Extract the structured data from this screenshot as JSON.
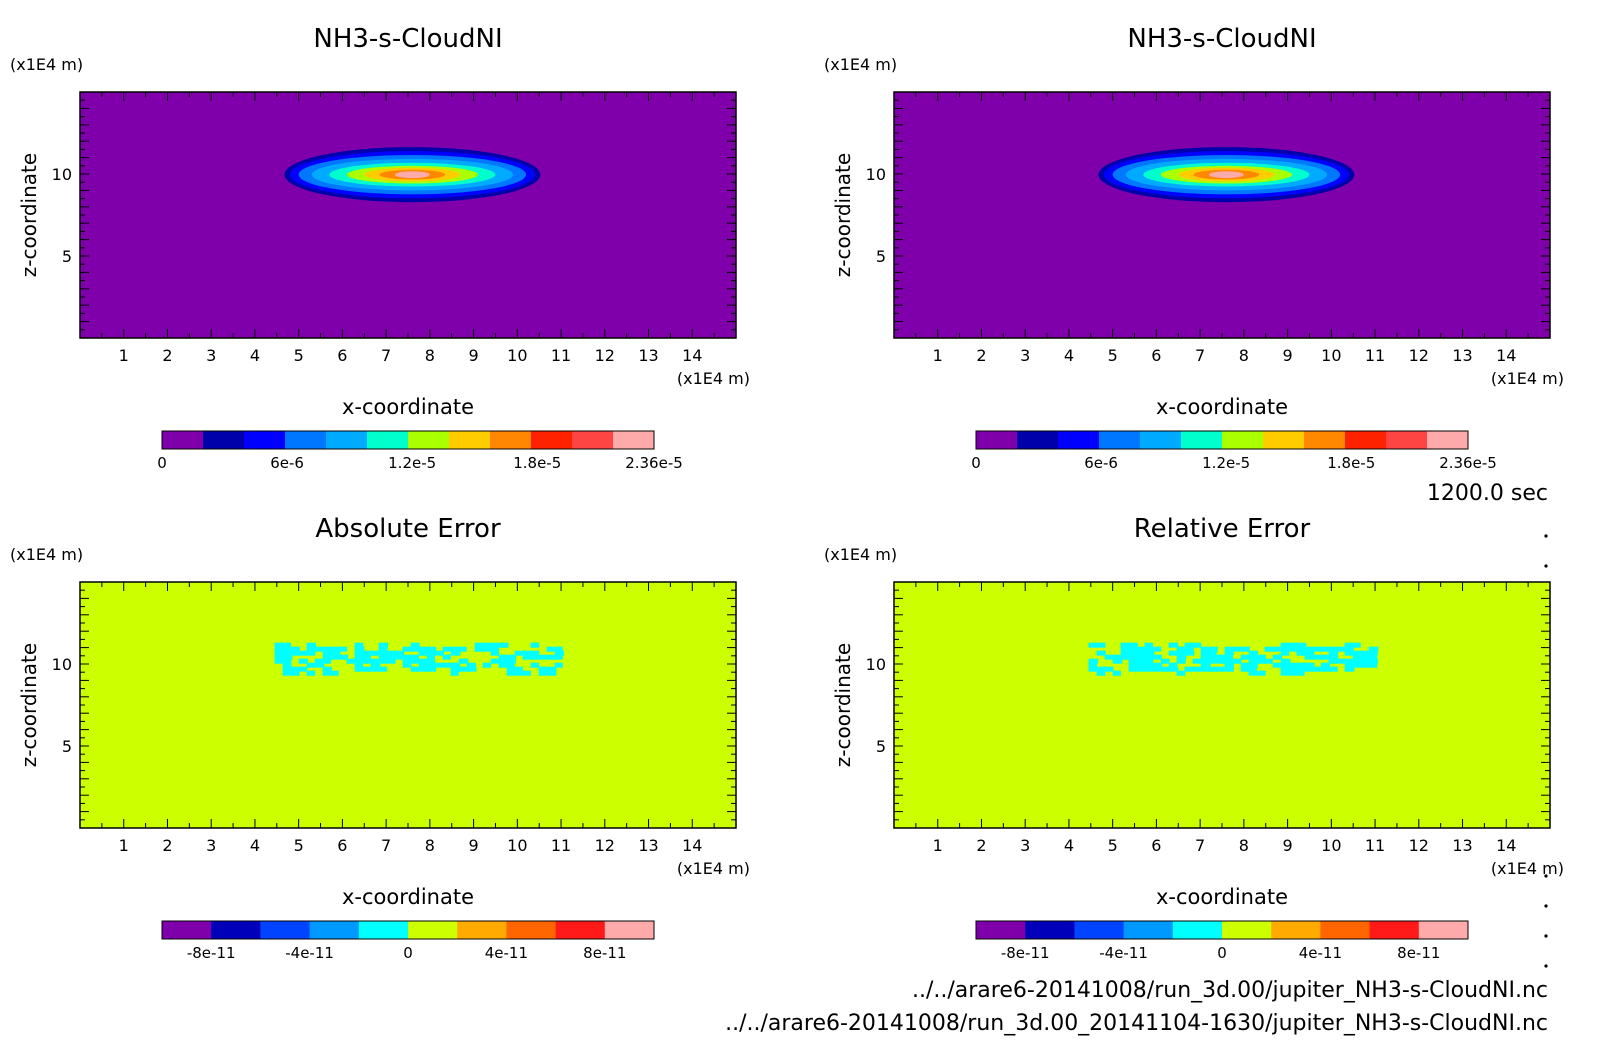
{
  "time_label": "1200.0 sec",
  "files": {
    "line1": "../../arare6-20141008/run_3d.00/jupiter_NH3-s-CloudNI.nc",
    "line2": "../../arare6-20141008/run_3d.00_20141104-1630/jupiter_NH3-s-CloudNI.nc"
  },
  "colors": {
    "purple": "#7f00aa",
    "yellowgreen": "#ccff00",
    "cyan": "#00ffff"
  },
  "chart_data": [
    {
      "type": "heatmap",
      "title": "NH3-s-CloudNI",
      "xlabel": "x-coordinate",
      "ylabel": "z-coordinate",
      "x_unit": "(x1E4 m)",
      "z_unit": "(x1E4 m)",
      "xlim": [
        0,
        15
      ],
      "zlim": [
        0,
        15
      ],
      "x_ticks": [
        1,
        2,
        3,
        4,
        5,
        6,
        7,
        8,
        9,
        10,
        11,
        12,
        13,
        14
      ],
      "z_ticks": [
        5,
        10
      ],
      "background_color": "#7f00aa",
      "feature": "lens-shaped cloud near z=10 spanning x≈4.7 to x≈10.5",
      "colorbar": {
        "colors": [
          "#7f00aa",
          "#0000aa",
          "#0000ff",
          "#0077ff",
          "#00aaff",
          "#00ffcc",
          "#aaff00",
          "#ffcc00",
          "#ff8800",
          "#ff2200",
          "#ff4444",
          "#ffaaaa"
        ],
        "tick_labels": [
          "0",
          "6e-6",
          "1.2e-5",
          "1.8e-5",
          "2.36e-5"
        ],
        "range": [
          0,
          2.36e-05
        ]
      }
    },
    {
      "type": "heatmap",
      "title": "NH3-s-CloudNI",
      "xlabel": "x-coordinate",
      "ylabel": "z-coordinate",
      "x_unit": "(x1E4 m)",
      "z_unit": "(x1E4 m)",
      "xlim": [
        0,
        15
      ],
      "zlim": [
        0,
        15
      ],
      "x_ticks": [
        1,
        2,
        3,
        4,
        5,
        6,
        7,
        8,
        9,
        10,
        11,
        12,
        13,
        14
      ],
      "z_ticks": [
        5,
        10
      ],
      "background_color": "#7f00aa",
      "feature": "lens-shaped cloud near z=10 spanning x≈4.7 to x≈10.5",
      "colorbar": {
        "colors": [
          "#7f00aa",
          "#0000aa",
          "#0000ff",
          "#0077ff",
          "#00aaff",
          "#00ffcc",
          "#aaff00",
          "#ffcc00",
          "#ff8800",
          "#ff2200",
          "#ff4444",
          "#ffaaaa"
        ],
        "tick_labels": [
          "0",
          "6e-6",
          "1.2e-5",
          "1.8e-5",
          "2.36e-5"
        ],
        "range": [
          0,
          2.36e-05
        ]
      }
    },
    {
      "type": "heatmap",
      "title": "Absolute Error",
      "xlabel": "x-coordinate",
      "ylabel": "z-coordinate",
      "x_unit": "(x1E4 m)",
      "z_unit": "(x1E4 m)",
      "xlim": [
        0,
        15
      ],
      "zlim": [
        0,
        15
      ],
      "x_ticks": [
        1,
        2,
        3,
        4,
        5,
        6,
        7,
        8,
        9,
        10,
        11,
        12,
        13,
        14
      ],
      "z_ticks": [
        5,
        10
      ],
      "background_color": "#ccff00",
      "feature": "noisy cyan patch around z=10 spanning x≈4.4 to x≈10.9",
      "colorbar": {
        "colors": [
          "#7f00aa",
          "#0000bb",
          "#0044ff",
          "#0099ff",
          "#00ffff",
          "#ccff00",
          "#ffaa00",
          "#ff6600",
          "#ff1a1a",
          "#ffaaaa"
        ],
        "tick_labels": [
          "-8e-11",
          "-4e-11",
          "0",
          "4e-11",
          "8e-11"
        ],
        "range": [
          -1e-10,
          1e-10
        ]
      }
    },
    {
      "type": "heatmap",
      "title": "Relative Error",
      "xlabel": "x-coordinate",
      "ylabel": "z-coordinate",
      "x_unit": "(x1E4 m)",
      "z_unit": "(x1E4 m)",
      "xlim": [
        0,
        15
      ],
      "zlim": [
        0,
        15
      ],
      "x_ticks": [
        1,
        2,
        3,
        4,
        5,
        6,
        7,
        8,
        9,
        10,
        11,
        12,
        13,
        14
      ],
      "z_ticks": [
        5,
        10
      ],
      "background_color": "#ccff00",
      "feature": "noisy cyan patch around z=10 spanning x≈4.4 to x≈10.9",
      "colorbar": {
        "colors": [
          "#7f00aa",
          "#0000bb",
          "#0044ff",
          "#0099ff",
          "#00ffff",
          "#ccff00",
          "#ffaa00",
          "#ff6600",
          "#ff1a1a",
          "#ffaaaa"
        ],
        "tick_labels": [
          "-8e-11",
          "-4e-11",
          "0",
          "4e-11",
          "8e-11"
        ],
        "range": [
          -1e-10,
          1e-10
        ]
      }
    }
  ]
}
